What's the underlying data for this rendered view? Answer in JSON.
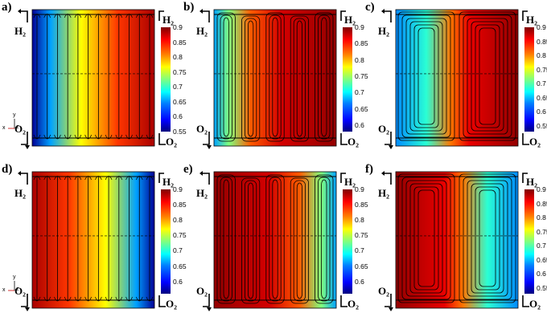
{
  "panels": [
    {
      "id": "a",
      "label": "a)",
      "layout": "parallel",
      "direction": "lr",
      "inlet": "H₂",
      "outlet": "O₂",
      "colorbar": {
        "ticks": [
          "0.9",
          "0.85",
          "0.8",
          "0.75",
          "0.7",
          "0.65",
          "0.6",
          "0.55"
        ],
        "min": 0.55,
        "max": 0.9
      }
    },
    {
      "id": "b",
      "label": "b)",
      "layout": "serpentine",
      "direction": "lr",
      "inlet": "H₂",
      "outlet": "O₂",
      "colorbar": {
        "ticks": [
          "0.9",
          "0.85",
          "0.8",
          "0.75",
          "0.7",
          "0.65",
          "0.6"
        ],
        "min": 0.58,
        "max": 0.9
      }
    },
    {
      "id": "c",
      "label": "c)",
      "layout": "spiral",
      "direction": "lr",
      "inlet": "H₂",
      "outlet": "O₂",
      "colorbar": {
        "ticks": [
          "0.9",
          "0.85",
          "0.8",
          "0.75",
          "0.7",
          "0.65",
          "0.6",
          "0.55"
        ],
        "min": 0.53,
        "max": 0.9
      }
    },
    {
      "id": "d",
      "label": "d)",
      "layout": "parallel",
      "direction": "rl",
      "inlet": "H₂",
      "outlet": "O₂",
      "colorbar": {
        "ticks": [
          "0.9",
          "0.85",
          "0.8",
          "0.75",
          "0.7",
          "0.65",
          "0.6"
        ],
        "min": 0.56,
        "max": 0.9
      }
    },
    {
      "id": "e",
      "label": "e)",
      "layout": "serpentine",
      "direction": "rl",
      "inlet": "H₂",
      "outlet": "O₂",
      "colorbar": {
        "ticks": [
          "0.9",
          "0.85",
          "0.8",
          "0.75",
          "0.7",
          "0.65",
          "0.6"
        ],
        "min": 0.56,
        "max": 0.9
      }
    },
    {
      "id": "f",
      "label": "f)",
      "layout": "spiral",
      "direction": "rl",
      "inlet": "H₂",
      "outlet": "O₂",
      "colorbar": {
        "ticks": [
          "0.9",
          "0.85",
          "0.8",
          "0.75",
          "0.7",
          "0.65",
          "0.6",
          "0.55"
        ],
        "min": 0.53,
        "max": 0.9
      }
    }
  ],
  "axis_triad": {
    "y": "y",
    "z": "z",
    "x": "x"
  }
}
